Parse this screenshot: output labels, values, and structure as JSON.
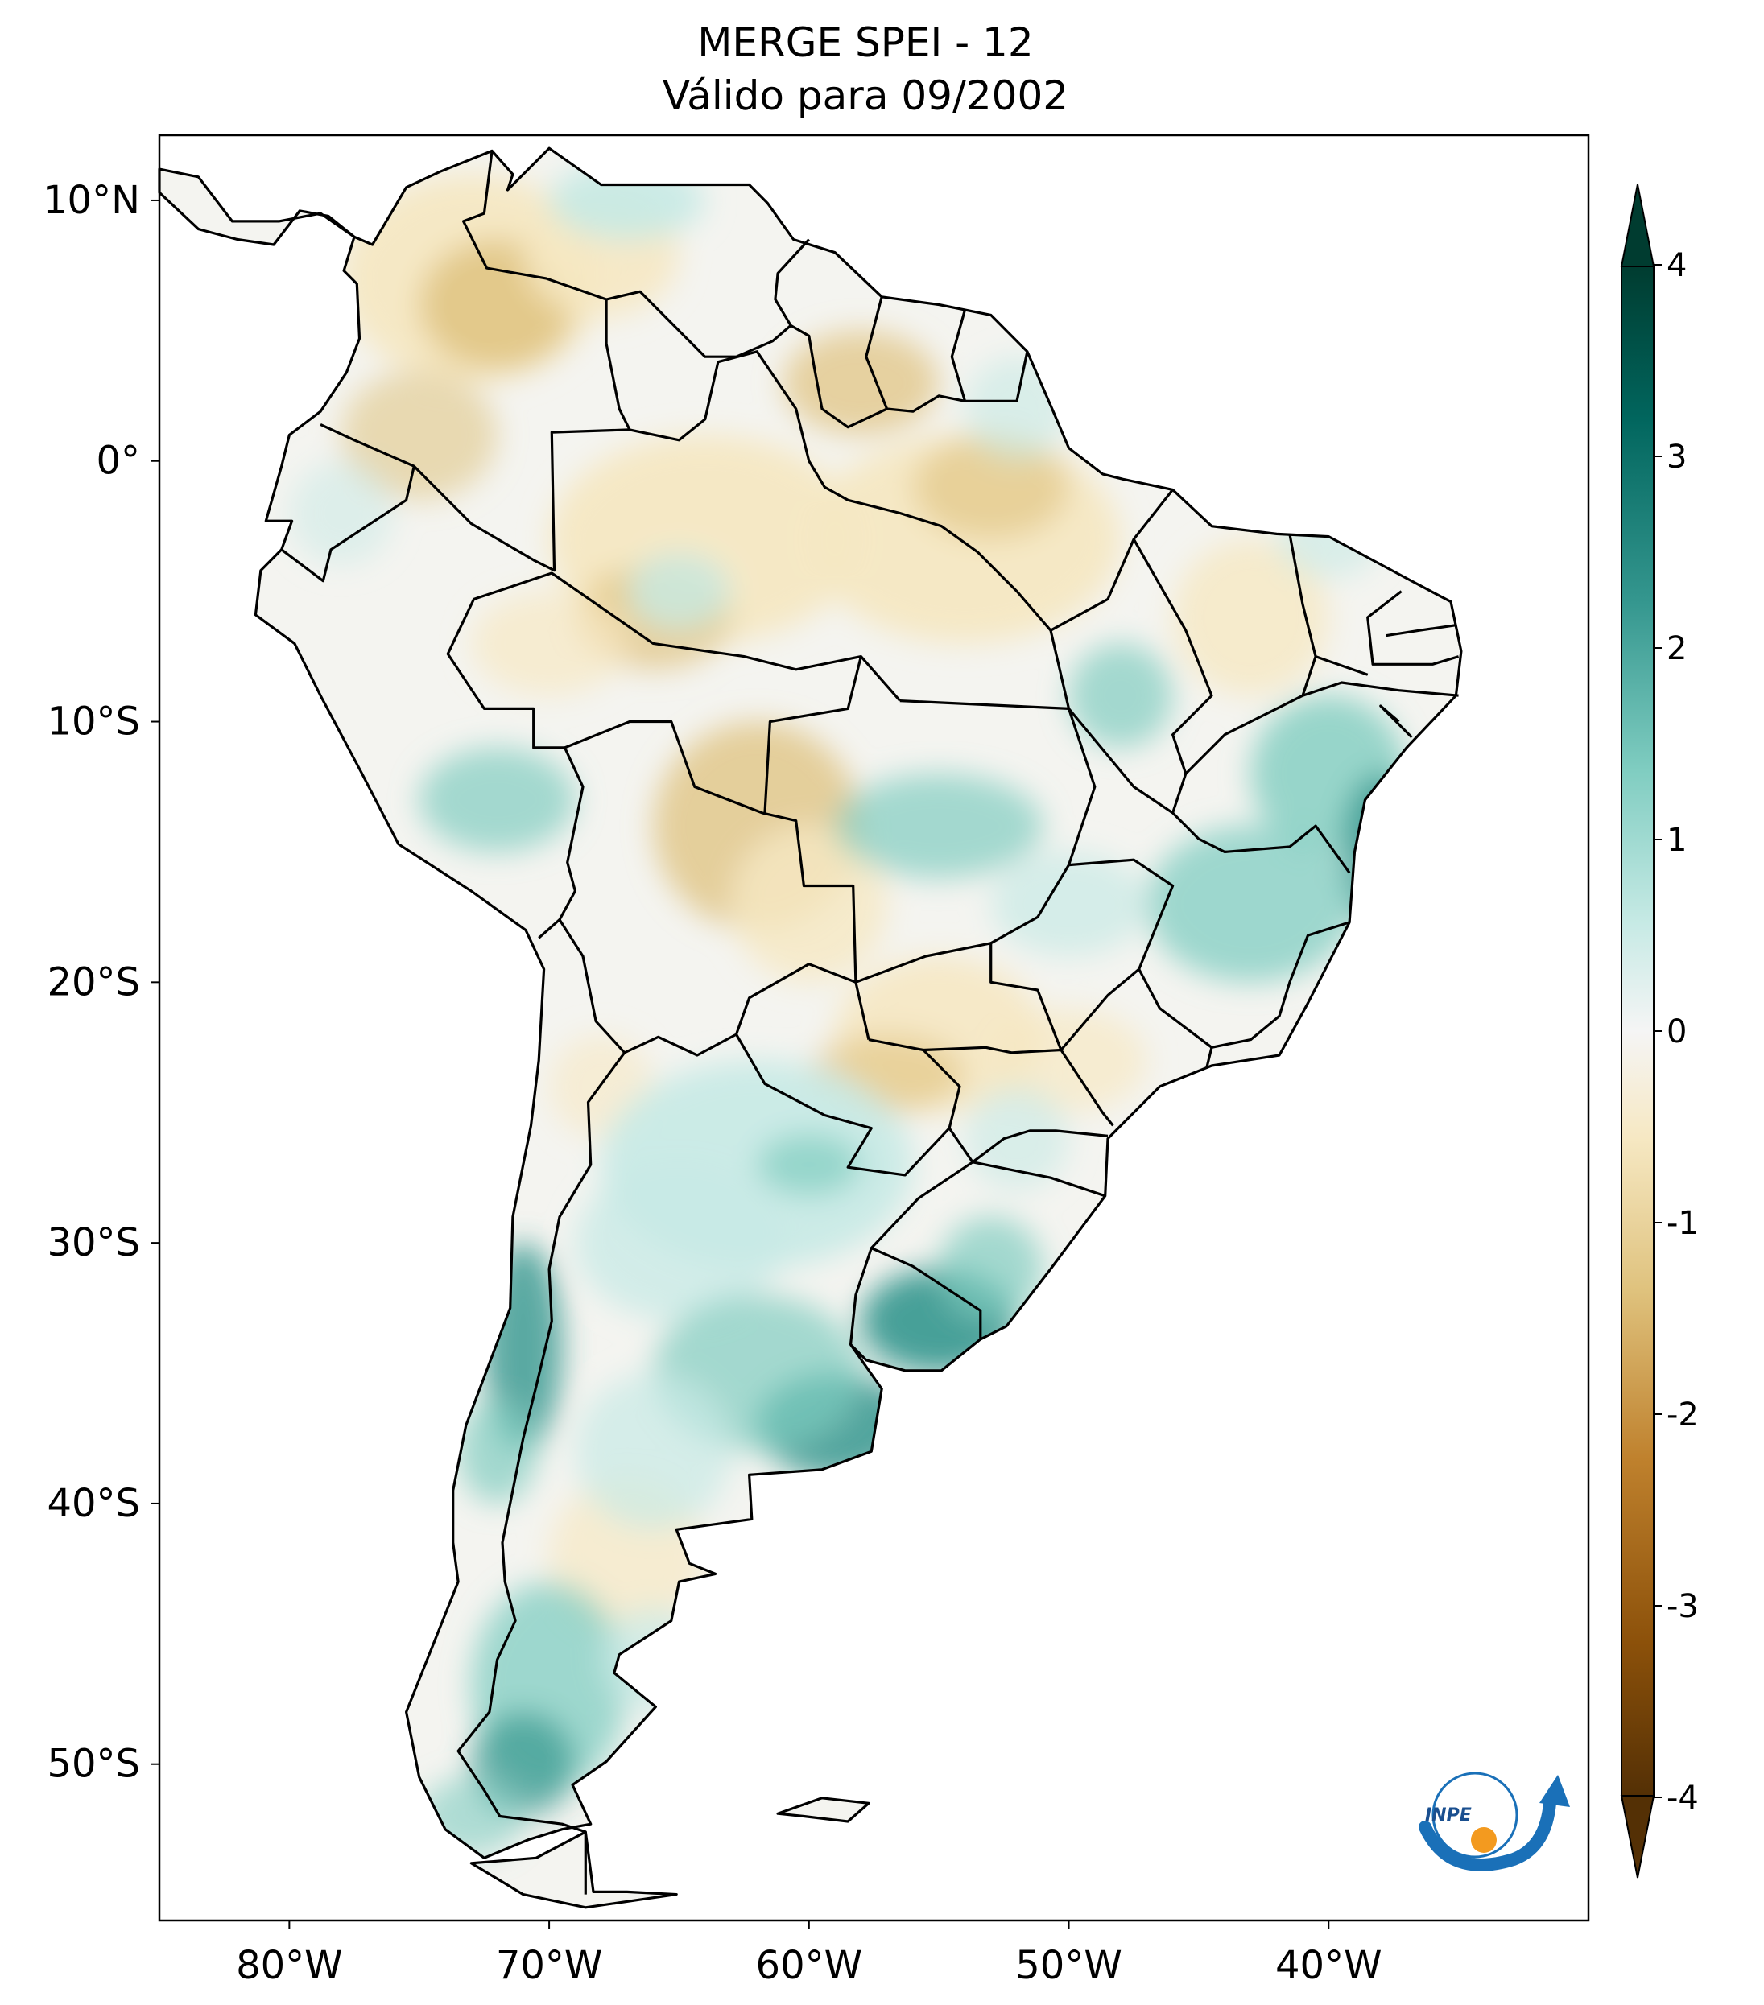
{
  "title": {
    "line1": "MERGE   SPEI - 12",
    "line2": "Válido para 09/2002"
  },
  "map": {
    "region": "South America",
    "projection": "PlateCarree",
    "lon_range": [
      -85,
      -30
    ],
    "lat_range": [
      -56,
      12.5
    ],
    "lat_ticks": [
      {
        "value": 10,
        "label": "10°N"
      },
      {
        "value": 0,
        "label": "0°"
      },
      {
        "value": -10,
        "label": "10°S"
      },
      {
        "value": -20,
        "label": "20°S"
      },
      {
        "value": -30,
        "label": "30°S"
      },
      {
        "value": -40,
        "label": "40°S"
      },
      {
        "value": -50,
        "label": "50°S"
      }
    ],
    "lon_ticks": [
      {
        "value": -80,
        "label": "80°W"
      },
      {
        "value": -70,
        "label": "70°W"
      },
      {
        "value": -60,
        "label": "60°W"
      },
      {
        "value": -50,
        "label": "50°W"
      },
      {
        "value": -40,
        "label": "40°W"
      }
    ],
    "colors": {
      "dry_extreme": "#543005",
      "dry_strong": "#8c510a",
      "dry_moderate": "#bf812d",
      "dry_mild": "#dfc27d",
      "near_normal": "#f6e8c3",
      "neutral": "#f5f5f5",
      "wet_mild": "#c7eae5",
      "wet_moderate": "#80cdc1",
      "wet_strong": "#35978f",
      "wet_very_strong": "#01665e",
      "wet_extreme": "#003c30",
      "border": "#000000"
    },
    "logo": "INPE"
  },
  "colorbar": {
    "min": -4,
    "max": 4,
    "extend": "both",
    "colormap": "BrBG",
    "ticks": [
      {
        "value": 4,
        "label": "4"
      },
      {
        "value": 3,
        "label": "3"
      },
      {
        "value": 2,
        "label": "2"
      },
      {
        "value": 1,
        "label": "1"
      },
      {
        "value": 0,
        "label": "0"
      },
      {
        "value": -1,
        "label": "-1"
      },
      {
        "value": -2,
        "label": "-2"
      },
      {
        "value": -3,
        "label": "-3"
      },
      {
        "value": -4,
        "label": "-4"
      }
    ]
  }
}
